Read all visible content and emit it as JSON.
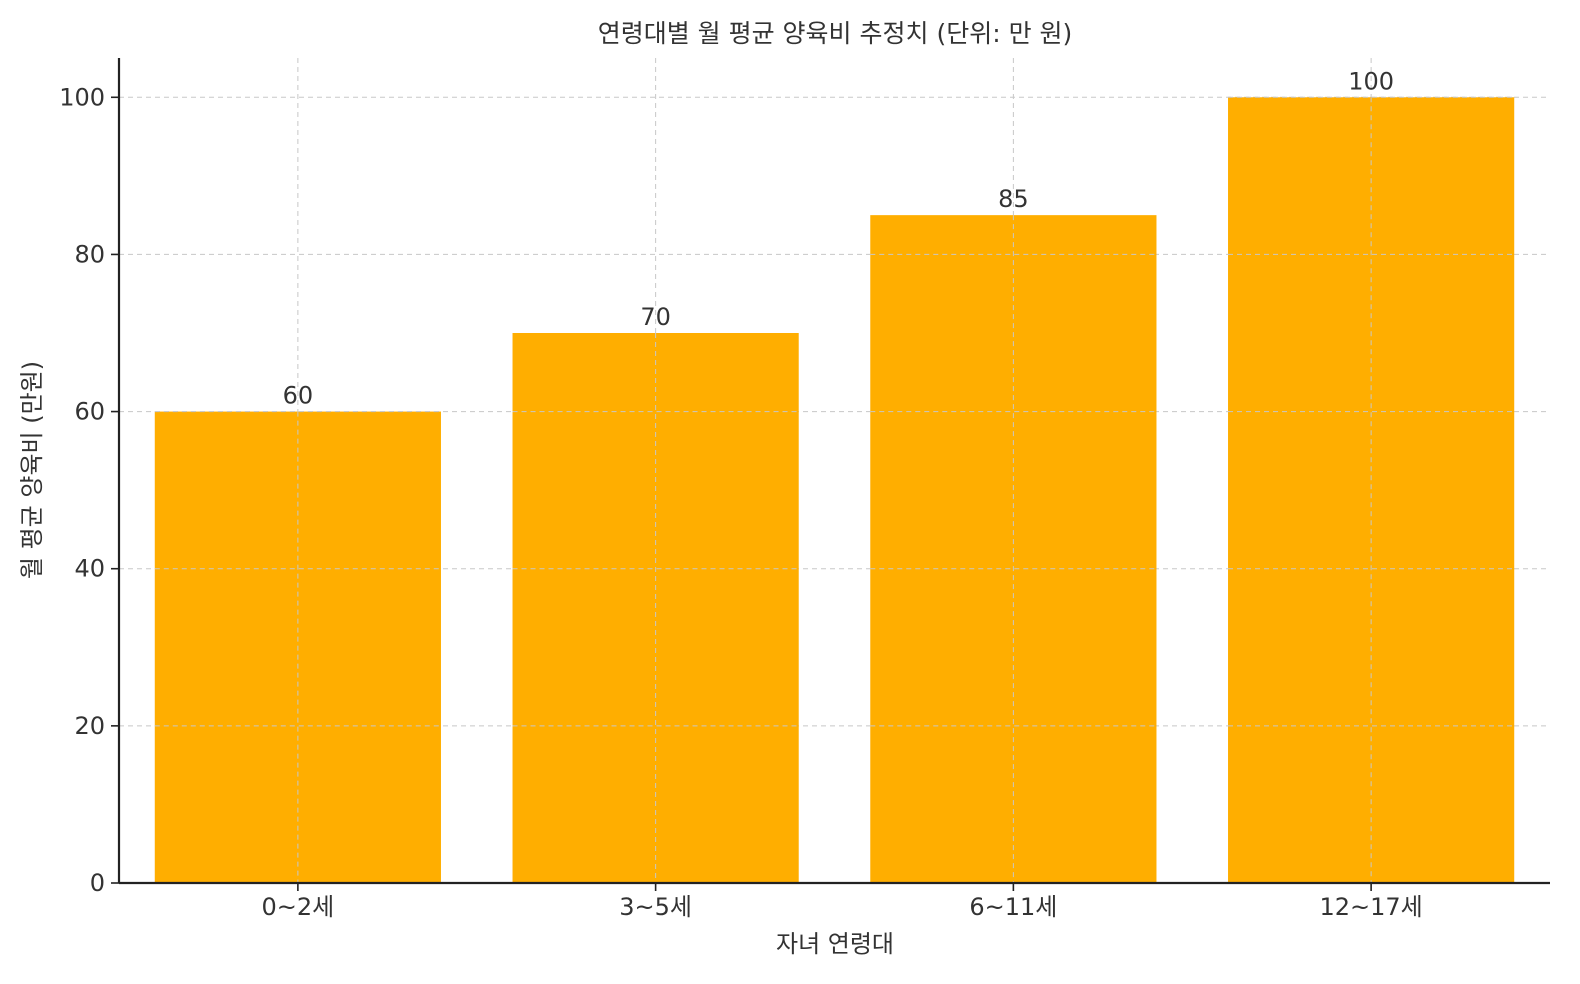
{
  "chart_data": {
    "type": "bar",
    "title": "연령대별 월 평균 양육비 추정치 (단위: 만 원)",
    "xlabel": "자녀 연령대",
    "ylabel": "월 평균 양육비 (만원)",
    "categories": [
      "0~2세",
      "3~5세",
      "6~11세",
      "12~17세"
    ],
    "values": [
      60,
      70,
      85,
      100
    ],
    "ylim": [
      0,
      105
    ],
    "yticks": [
      0,
      20,
      40,
      60,
      80,
      100
    ],
    "grid": true,
    "bar_color": "#FFAE00",
    "data_labels": true
  }
}
